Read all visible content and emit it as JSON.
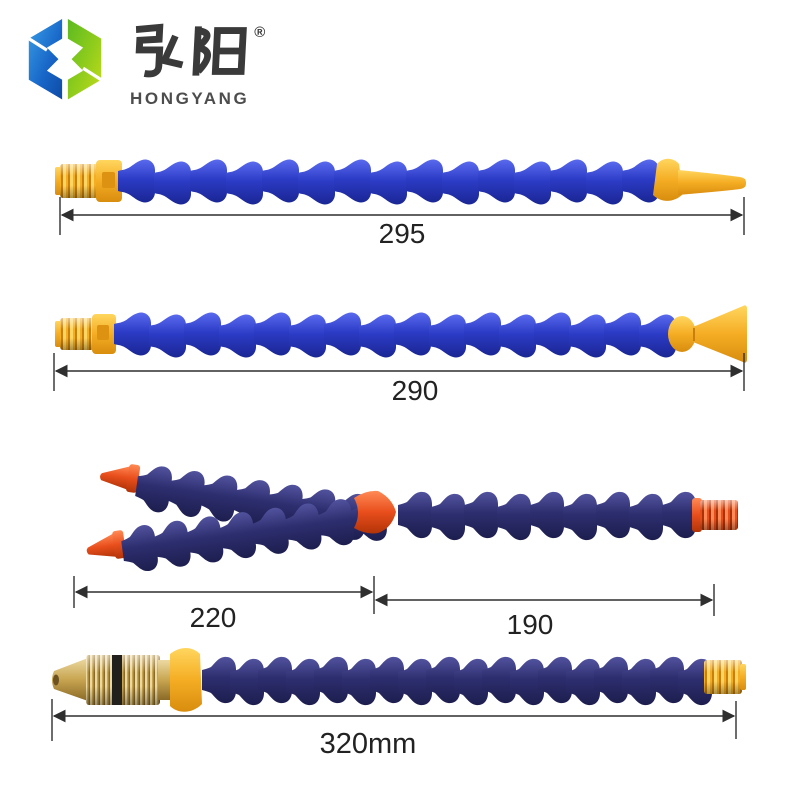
{
  "logo": {
    "brand_cn": "弘阳",
    "brand_en": "HONGYANG",
    "registered_mark": "®"
  },
  "hoses": [
    {
      "name": "flexible-hose-round-nozzle",
      "dimension": "295"
    },
    {
      "name": "flexible-hose-flat-fan-nozzle",
      "dimension": "290"
    },
    {
      "name": "y-type-double-flexible-hose",
      "dimension_left": "220",
      "dimension_right": "190"
    },
    {
      "name": "flexible-hose-brass-nozzle",
      "dimension": "320mm"
    }
  ],
  "colors": {
    "bright_blue": "#2c3cc6",
    "navy_blue": "#2d2e6f",
    "connector_yellow": "#f5ad24",
    "orange_red": "#e84e1c",
    "brass": "#c8a551",
    "logo_blue": "#1866c8",
    "logo_green": "#6cbf1e",
    "brand_text": "#4d4d4d",
    "dimension_line": "#2f2f2f",
    "text": "#222222"
  }
}
